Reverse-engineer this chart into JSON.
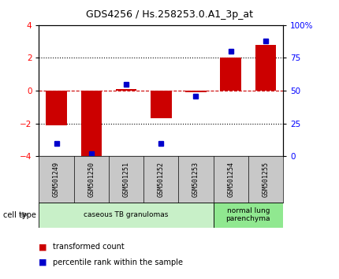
{
  "title": "GDS4256 / Hs.258253.0.A1_3p_at",
  "samples": [
    "GSM501249",
    "GSM501250",
    "GSM501251",
    "GSM501252",
    "GSM501253",
    "GSM501254",
    "GSM501255"
  ],
  "transformed_count": [
    -2.1,
    -4.05,
    0.1,
    -1.7,
    -0.1,
    2.0,
    2.8
  ],
  "percentile_rank": [
    10,
    2,
    55,
    10,
    46,
    80,
    88
  ],
  "ylim_left": [
    -4,
    4
  ],
  "ylim_right": [
    0,
    100
  ],
  "yticks_left": [
    -4,
    -2,
    0,
    2,
    4
  ],
  "yticks_right": [
    0,
    25,
    50,
    75,
    100
  ],
  "yticklabels_right": [
    "0",
    "25",
    "50",
    "75",
    "100%"
  ],
  "cell_types": [
    {
      "label": "caseous TB granulomas",
      "samples": [
        0,
        1,
        2,
        3,
        4
      ],
      "color": "#c8f0c8"
    },
    {
      "label": "normal lung\nparenchyma",
      "samples": [
        5,
        6
      ],
      "color": "#90e890"
    }
  ],
  "bar_color": "#cc0000",
  "dot_color": "#0000cc",
  "zero_line_color": "#cc0000",
  "dotted_line_color": "#000000",
  "bg_color": "#ffffff",
  "tick_label_area_color": "#c8c8c8",
  "cell_type_label": "cell type",
  "legend_transformed": "transformed count",
  "legend_percentile": "percentile rank within the sample"
}
